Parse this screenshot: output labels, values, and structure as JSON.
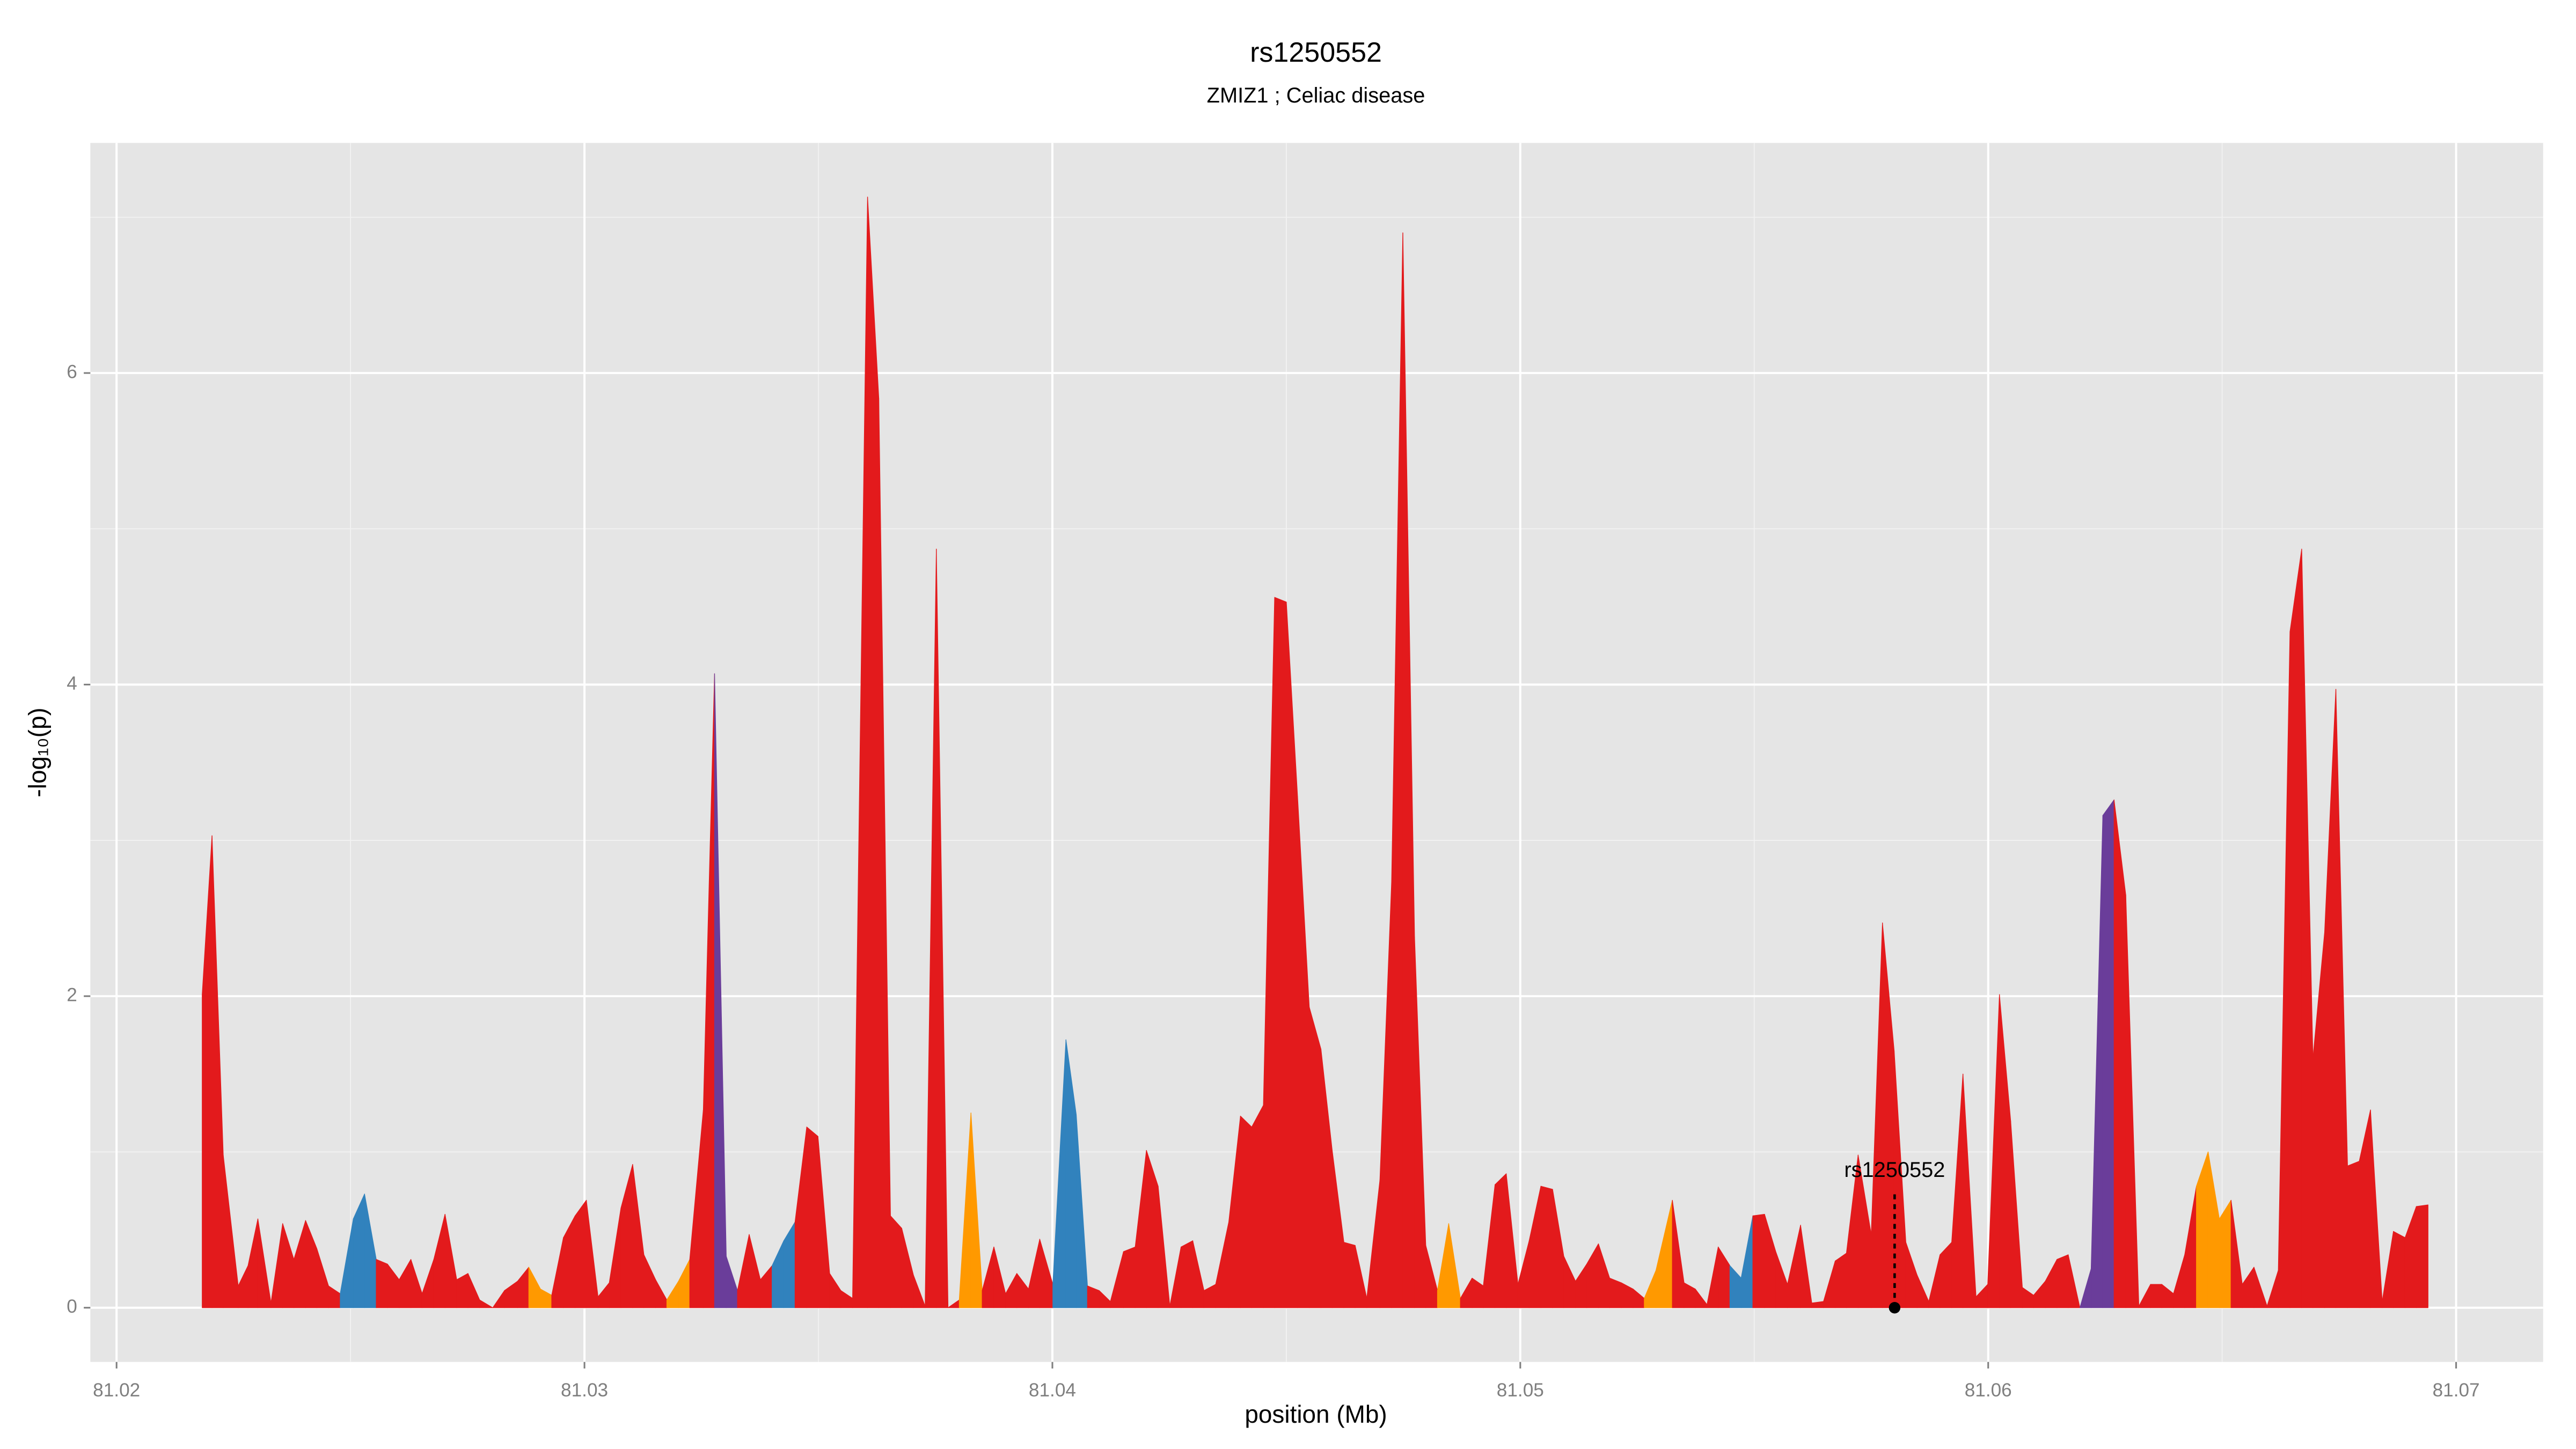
{
  "chart_data": {
    "type": "area",
    "title": "rs1250552",
    "subtitle": "ZMIZ1 ; Celiac disease",
    "x_label": "position (Mb)",
    "y_label": "-log₁₀(p)",
    "xlim": [
      81.01944,
      81.07186
    ],
    "ylim": [
      -0.348,
      7.477
    ],
    "xticks": [
      81.02,
      81.03,
      81.04,
      81.05,
      81.06,
      81.07
    ],
    "yticks": [
      0,
      2,
      4,
      6
    ],
    "x_minor_ticks": [
      81.025,
      81.035,
      81.045,
      81.055,
      81.065
    ],
    "y_minor_ticks": [
      1,
      3,
      5,
      7
    ],
    "grid": true,
    "x": [
      81.02183,
      81.02204,
      81.02228,
      81.0226,
      81.02281,
      81.02302,
      81.0233,
      81.02355,
      81.02379,
      81.02404,
      81.02428,
      81.02453,
      81.02478,
      81.02506,
      81.0253,
      81.02555,
      81.02579,
      81.02604,
      81.02629,
      81.02653,
      81.02678,
      81.02702,
      81.02727,
      81.02751,
      81.02776,
      81.02804,
      81.02829,
      81.02857,
      81.02881,
      81.02906,
      81.0293,
      81.02955,
      81.0298,
      81.03004,
      81.03029,
      81.03053,
      81.03078,
      81.03103,
      81.03127,
      81.03152,
      81.03176,
      81.03201,
      81.03225,
      81.03254,
      81.03278,
      81.03303,
      81.03327,
      81.03352,
      81.03376,
      81.03401,
      81.03426,
      81.0345,
      81.03475,
      81.03499,
      81.03524,
      81.03548,
      81.03573,
      81.03605,
      81.03629,
      81.03654,
      81.03678,
      81.03703,
      81.03728,
      81.03752,
      81.03777,
      81.03801,
      81.03826,
      81.0385,
      81.03875,
      81.039,
      81.03924,
      81.03949,
      81.03973,
      81.04001,
      81.04029,
      81.04051,
      81.04075,
      81.041,
      81.04124,
      81.04152,
      81.04177,
      81.04201,
      81.04226,
      81.04251,
      81.04275,
      81.043,
      81.04324,
      81.04349,
      81.04377,
      81.04402,
      81.04426,
      81.04451,
      81.04475,
      81.045,
      81.04524,
      81.04549,
      81.04574,
      81.04598,
      81.04623,
      81.04647,
      81.04672,
      81.047,
      81.04725,
      81.04749,
      81.04774,
      81.04798,
      81.04823,
      81.04847,
      81.04872,
      81.04897,
      81.04921,
      81.04946,
      81.0497,
      81.04995,
      81.05019,
      81.05044,
      81.05069,
      81.05093,
      81.05118,
      81.05142,
      81.05167,
      81.05191,
      81.05216,
      81.05241,
      81.05265,
      81.0529,
      81.05325,
      81.0535,
      81.05374,
      81.05399,
      81.05423,
      81.05448,
      81.05472,
      81.05497,
      81.05522,
      81.05546,
      81.05571,
      81.05599,
      81.05623,
      81.05648,
      81.05673,
      81.05697,
      81.05722,
      81.0575,
      81.05774,
      81.05799,
      81.05824,
      81.05848,
      81.05873,
      81.05897,
      81.05922,
      81.05946,
      81.05974,
      81.05999,
      81.06024,
      81.06048,
      81.06073,
      81.06097,
      81.06122,
      81.06147,
      81.06171,
      81.06196,
      81.0622,
      81.06245,
      81.06269,
      81.06294,
      81.06322,
      81.06347,
      81.06371,
      81.06396,
      81.0642,
      81.06445,
      81.0647,
      81.06494,
      81.06519,
      81.06543,
      81.06568,
      81.06596,
      81.0662,
      81.06645,
      81.0667,
      81.06694,
      81.06719,
      81.06743,
      81.06768,
      81.06793,
      81.06817,
      81.06842,
      81.06866,
      81.06891,
      81.06915,
      81.0694
    ],
    "values": [
      2.01,
      3.03,
      0.98,
      0.14,
      0.27,
      0.57,
      0.03,
      0.54,
      0.31,
      0.56,
      0.38,
      0.14,
      0.09,
      0.57,
      0.73,
      0.31,
      0.28,
      0.18,
      0.31,
      0.09,
      0.31,
      0.6,
      0.18,
      0.22,
      0.05,
      0,
      0.11,
      0.17,
      0.26,
      0.12,
      0.08,
      0.45,
      0.59,
      0.69,
      0.07,
      0.16,
      0.64,
      0.92,
      0.34,
      0.18,
      0.05,
      0.17,
      0.31,
      1.27,
      4.07,
      0.33,
      0.11,
      0.47,
      0.18,
      0.27,
      0.43,
      0.55,
      1.16,
      1.1,
      0.22,
      0.11,
      0.06,
      7.13,
      5.84,
      0.59,
      0.51,
      0.21,
      0.01,
      4.87,
      0,
      0.05,
      1.25,
      0.11,
      0.39,
      0.09,
      0.22,
      0.12,
      0.44,
      0.15,
      1.72,
      1.24,
      0.14,
      0.11,
      0.04,
      0.36,
      0.39,
      1.01,
      0.78,
      0.01,
      0.39,
      0.43,
      0.11,
      0.15,
      0.55,
      1.23,
      1.16,
      1.3,
      4.56,
      4.53,
      3.28,
      1.93,
      1.66,
      1.01,
      0.42,
      0.4,
      0.06,
      0.82,
      2.73,
      6.9,
      2.38,
      0.4,
      0.11,
      0.54,
      0.06,
      0.19,
      0.14,
      0.79,
      0.86,
      0.15,
      0.43,
      0.78,
      0.76,
      0.33,
      0.17,
      0.28,
      0.41,
      0.19,
      0.16,
      0.12,
      0.06,
      0.24,
      0.69,
      0.16,
      0.12,
      0.02,
      0.39,
      0.27,
      0.19,
      0.59,
      0.6,
      0.36,
      0.15,
      0.53,
      0.03,
      0.04,
      0.3,
      0.35,
      0.98,
      0.47,
      2.47,
      1.65,
      0.42,
      0.21,
      0.04,
      0.34,
      0.42,
      1.5,
      0.07,
      0.15,
      2.01,
      1.2,
      0.13,
      0.08,
      0.17,
      0.31,
      0.34,
      0,
      0.25,
      3.16,
      3.26,
      2.65,
      0.01,
      0.15,
      0.15,
      0.09,
      0.34,
      0.78,
      1,
      0.57,
      0.69,
      0.15,
      0.26,
      0.01,
      0.24,
      4.34,
      4.87,
      1.6,
      2.41,
      3.97,
      0.91,
      0.94,
      1.27,
      0.04,
      0.49,
      0.45,
      0.65,
      0.66
    ],
    "point_colors": [
      "#e31a1c",
      "#e31a1c",
      "#e31a1c",
      "#e31a1c",
      "#e31a1c",
      "#e31a1c",
      "#e31a1c",
      "#e31a1c",
      "#e31a1c",
      "#e31a1c",
      "#e31a1c",
      "#e31a1c",
      "#e31a1c",
      "#3182bd",
      "#3182bd",
      "#e31a1c",
      "#e31a1c",
      "#e31a1c",
      "#e31a1c",
      "#e31a1c",
      "#e31a1c",
      "#e31a1c",
      "#e31a1c",
      "#e31a1c",
      "#e31a1c",
      "#e31a1c",
      "#e31a1c",
      "#e31a1c",
      "#e31a1c",
      "#ff9900",
      "#e31a1c",
      "#e31a1c",
      "#e31a1c",
      "#e31a1c",
      "#e31a1c",
      "#e31a1c",
      "#e31a1c",
      "#e31a1c",
      "#e31a1c",
      "#e31a1c",
      "#e31a1c",
      "#ff9900",
      "#e31a1c",
      "#e31a1c",
      "#e31a1c",
      "#6a3d9a",
      "#e31a1c",
      "#e31a1c",
      "#e31a1c",
      "#e31a1c",
      "#3182bd",
      "#e31a1c",
      "#e31a1c",
      "#e31a1c",
      "#e31a1c",
      "#e31a1c",
      "#e31a1c",
      "#e31a1c",
      "#e31a1c",
      "#e31a1c",
      "#e31a1c",
      "#e31a1c",
      "#e31a1c",
      "#e31a1c",
      "#e31a1c",
      "#e31a1c",
      "#ff9900",
      "#e31a1c",
      "#e31a1c",
      "#e31a1c",
      "#e31a1c",
      "#e31a1c",
      "#e31a1c",
      "#e31a1c",
      "#3182bd",
      "#3182bd",
      "#e31a1c",
      "#e31a1c",
      "#e31a1c",
      "#e31a1c",
      "#e31a1c",
      "#e31a1c",
      "#e31a1c",
      "#e31a1c",
      "#e31a1c",
      "#e31a1c",
      "#e31a1c",
      "#e31a1c",
      "#e31a1c",
      "#e31a1c",
      "#e31a1c",
      "#e31a1c",
      "#e31a1c",
      "#e31a1c",
      "#e31a1c",
      "#e31a1c",
      "#e31a1c",
      "#e31a1c",
      "#e31a1c",
      "#e31a1c",
      "#e31a1c",
      "#e31a1c",
      "#e31a1c",
      "#e31a1c",
      "#e31a1c",
      "#e31a1c",
      "#e31a1c",
      "#ff9900",
      "#e31a1c",
      "#e31a1c",
      "#e31a1c",
      "#e31a1c",
      "#e31a1c",
      "#e31a1c",
      "#e31a1c",
      "#e31a1c",
      "#e31a1c",
      "#e31a1c",
      "#e31a1c",
      "#e31a1c",
      "#e31a1c",
      "#e31a1c",
      "#e31a1c",
      "#e31a1c",
      "#e31a1c",
      "#ff9900",
      "#e31a1c",
      "#e31a1c",
      "#e31a1c",
      "#e31a1c",
      "#e31a1c",
      "#e31a1c",
      "#3182bd",
      "#e31a1c",
      "#e31a1c",
      "#e31a1c",
      "#e31a1c",
      "#e31a1c",
      "#e31a1c",
      "#e31a1c",
      "#e31a1c",
      "#e31a1c",
      "#e31a1c",
      "#e31a1c",
      "#e31a1c",
      "#e31a1c",
      "#e31a1c",
      "#e31a1c",
      "#e31a1c",
      "#e31a1c",
      "#e31a1c",
      "#e31a1c",
      "#e31a1c",
      "#e31a1c",
      "#e31a1c",
      "#e31a1c",
      "#e31a1c",
      "#e31a1c",
      "#e31a1c",
      "#e31a1c",
      "#e31a1c",
      "#e31a1c",
      "#6a3d9a",
      "#6a3d9a",
      "#e31a1c",
      "#e31a1c",
      "#e31a1c",
      "#e31a1c",
      "#e31a1c",
      "#e31a1c",
      "#e31a1c",
      "#e31a1c",
      "#ff9900",
      "#ff9900",
      "#e31a1c",
      "#e31a1c",
      "#e31a1c",
      "#e31a1c",
      "#e31a1c",
      "#e31a1c",
      "#e31a1c",
      "#e31a1c",
      "#e31a1c",
      "#e31a1c",
      "#e31a1c",
      "#e31a1c",
      "#e31a1c",
      "#e31a1c",
      "#e31a1c",
      "#e31a1c",
      "#e31a1c",
      "#e31a1c"
    ],
    "annotation": {
      "label": "rs1250552",
      "x": 81.058,
      "y": 0
    }
  }
}
